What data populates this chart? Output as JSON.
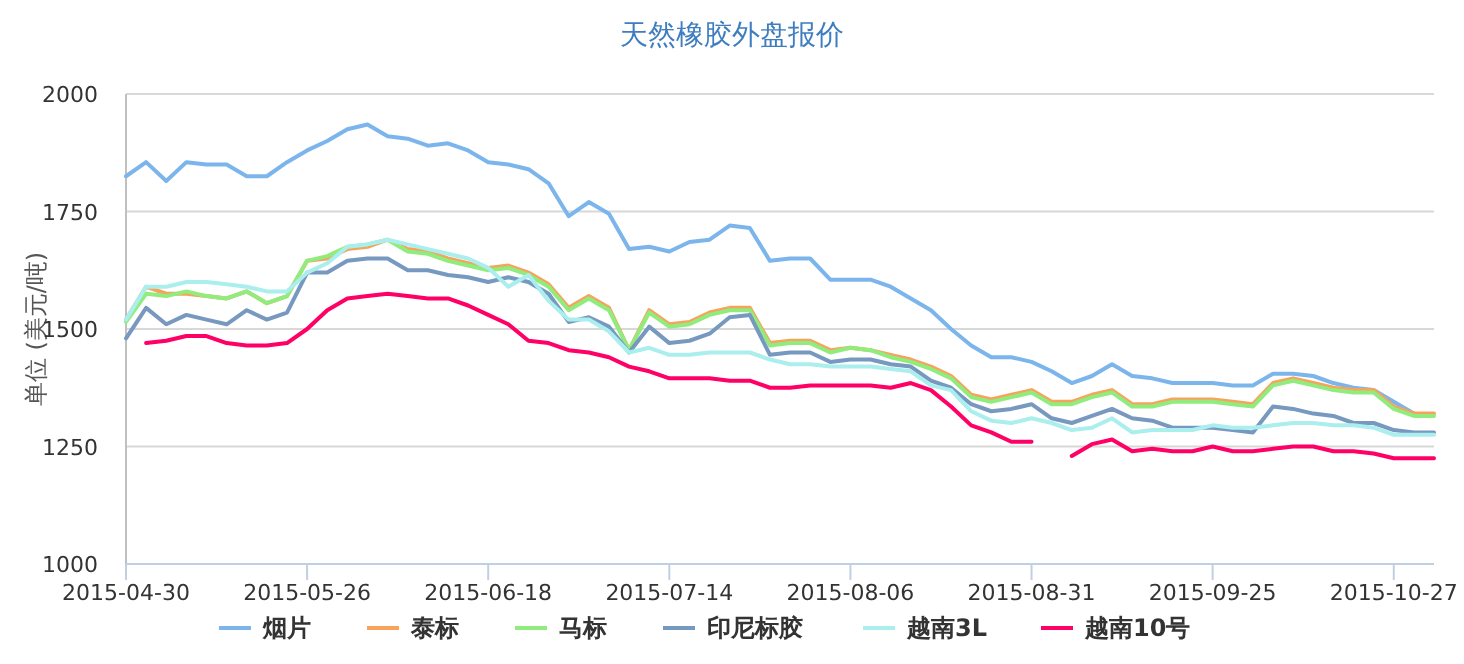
{
  "chart_data": {
    "type": "line",
    "title": "天然橡胶外盘报价",
    "ylabel": "单位 (美元/吨)",
    "categories": [
      "2015-04-30",
      null,
      null,
      null,
      null,
      null,
      null,
      null,
      null,
      "2015-05-26",
      null,
      null,
      null,
      null,
      null,
      null,
      null,
      null,
      "2015-06-18",
      null,
      null,
      null,
      null,
      null,
      null,
      null,
      null,
      "2015-07-14",
      null,
      null,
      null,
      null,
      null,
      null,
      null,
      null,
      "2015-08-06",
      null,
      null,
      null,
      null,
      null,
      null,
      null,
      null,
      "2015-08-31",
      null,
      null,
      null,
      null,
      null,
      null,
      null,
      null,
      "2015-09-25",
      null,
      null,
      null,
      null,
      null,
      null,
      null,
      null,
      "2015-10-27",
      null,
      null
    ],
    "ylim": [
      1000,
      2000
    ],
    "yticks": [
      1000,
      1250,
      1500,
      1750,
      2000
    ],
    "grid": "y",
    "legend": "bottom",
    "marker": "none",
    "line_style": "solid",
    "series": [
      {
        "name": "烟片",
        "color": "#7cb5ec",
        "values": [
          1825,
          1855,
          1815,
          1855,
          1850,
          1850,
          1825,
          1825,
          1855,
          1880,
          1900,
          1925,
          1935,
          1910,
          1905,
          1890,
          1895,
          1880,
          1855,
          1850,
          1840,
          1810,
          1740,
          1770,
          1745,
          1670,
          1675,
          1665,
          1685,
          1690,
          1720,
          1715,
          1645,
          1650,
          1650,
          1605,
          1605,
          1605,
          1590,
          1565,
          1540,
          1500,
          1465,
          1440,
          1440,
          1430,
          1410,
          1385,
          1400,
          1425,
          1400,
          1395,
          1385,
          1385,
          1385,
          1380,
          1380,
          1405,
          1405,
          1400,
          1385,
          1375,
          1370,
          1345,
          1320,
          null
        ]
      },
      {
        "name": "泰标",
        "color": "#f7a35c",
        "values": [
          1520,
          1590,
          1575,
          1575,
          1570,
          1565,
          1580,
          1555,
          1570,
          1645,
          1650,
          1670,
          1675,
          1690,
          1670,
          1665,
          1650,
          1640,
          1630,
          1635,
          1620,
          1595,
          1545,
          1570,
          1545,
          1455,
          1540,
          1510,
          1515,
          1535,
          1545,
          1545,
          1470,
          1475,
          1475,
          1455,
          1460,
          1455,
          1445,
          1435,
          1420,
          1400,
          1360,
          1350,
          1360,
          1370,
          1345,
          1345,
          1360,
          1370,
          1340,
          1340,
          1350,
          1350,
          1350,
          1345,
          1340,
          1385,
          1395,
          1385,
          1375,
          1370,
          1370,
          1335,
          1320,
          1320
        ]
      },
      {
        "name": "马标",
        "color": "#90ed7d",
        "values": [
          1515,
          1575,
          1570,
          1580,
          1570,
          1565,
          1580,
          1555,
          1570,
          1645,
          1655,
          1675,
          1680,
          1690,
          1665,
          1660,
          1645,
          1635,
          1625,
          1630,
          1615,
          1590,
          1540,
          1565,
          1540,
          1455,
          1535,
          1505,
          1510,
          1530,
          1540,
          1540,
          1465,
          1470,
          1470,
          1450,
          1460,
          1455,
          1440,
          1430,
          1415,
          1395,
          1355,
          1345,
          1355,
          1365,
          1340,
          1340,
          1355,
          1365,
          1335,
          1335,
          1345,
          1345,
          1345,
          1340,
          1335,
          1380,
          1390,
          1380,
          1370,
          1365,
          1365,
          1330,
          1315,
          1315
        ]
      },
      {
        "name": "印尼标胶",
        "color": "#7798bf",
        "values": [
          1480,
          1545,
          1510,
          1530,
          1520,
          1510,
          1540,
          1520,
          1535,
          1620,
          1620,
          1645,
          1650,
          1650,
          1625,
          1625,
          1615,
          1610,
          1600,
          1610,
          1600,
          1575,
          1515,
          1525,
          1505,
          1450,
          1505,
          1470,
          1475,
          1490,
          1525,
          1530,
          1445,
          1450,
          1450,
          1430,
          1435,
          1435,
          1425,
          1420,
          1390,
          1375,
          1340,
          1325,
          1330,
          1340,
          1310,
          1300,
          1315,
          1330,
          1310,
          1305,
          1290,
          1290,
          1290,
          1285,
          1280,
          1335,
          1330,
          1320,
          1315,
          1300,
          1300,
          1285,
          1280,
          1280
        ]
      },
      {
        "name": "越南3L",
        "color": "#aaeeee",
        "values": [
          1520,
          1590,
          1590,
          1600,
          1600,
          1595,
          1590,
          1580,
          1580,
          1620,
          1640,
          1675,
          1680,
          1690,
          1680,
          1670,
          1660,
          1650,
          1630,
          1590,
          1615,
          1560,
          1520,
          1520,
          1495,
          1450,
          1460,
          1445,
          1445,
          1450,
          1450,
          1450,
          1435,
          1425,
          1425,
          1420,
          1420,
          1420,
          1415,
          1410,
          1380,
          1370,
          1325,
          1305,
          1300,
          1310,
          1300,
          1285,
          1290,
          1310,
          1280,
          1285,
          1285,
          1285,
          1295,
          1290,
          1290,
          1295,
          1300,
          1300,
          1295,
          1295,
          1290,
          1275,
          1275,
          1275
        ]
      },
      {
        "name": "越南10号",
        "color": "#ff0066",
        "values": [
          null,
          1470,
          1475,
          1485,
          1485,
          1470,
          1465,
          1465,
          1470,
          1500,
          1540,
          1565,
          1570,
          1575,
          1570,
          1565,
          1565,
          1550,
          1530,
          1510,
          1475,
          1470,
          1455,
          1450,
          1440,
          1420,
          1410,
          1395,
          1395,
          1395,
          1390,
          1390,
          1375,
          1375,
          1380,
          1380,
          1380,
          1380,
          1375,
          1385,
          1370,
          1335,
          1295,
          1280,
          1260,
          1260,
          null,
          1230,
          1255,
          1265,
          1240,
          1245,
          1240,
          1240,
          1250,
          1240,
          1240,
          1245,
          1250,
          1250,
          1240,
          1240,
          1235,
          1225,
          1225,
          1225
        ]
      }
    ]
  }
}
